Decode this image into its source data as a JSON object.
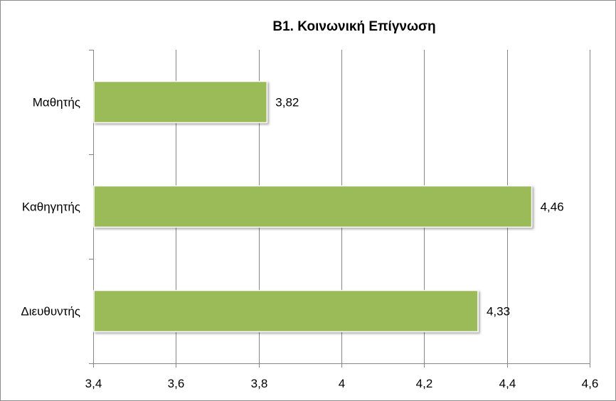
{
  "chart_data": {
    "type": "bar",
    "orientation": "horizontal",
    "title": "B1. Κοινωνική Επίγνωση",
    "categories": [
      "Μαθητής",
      "Καθηγητής",
      "Διευθυντής"
    ],
    "values": [
      3.82,
      4.46,
      4.33
    ],
    "value_labels": [
      "3,82",
      "4,46",
      "4,33"
    ],
    "xlim": [
      3.4,
      4.6
    ],
    "xticks": [
      3.4,
      3.6,
      3.8,
      4.0,
      4.2,
      4.4,
      4.6
    ],
    "xtick_labels": [
      "3,4",
      "3,6",
      "3,8",
      "4",
      "4,2",
      "4,4",
      "4,6"
    ],
    "grid": "vertical",
    "legend": "none",
    "bar_color": "#9bbb59",
    "xlabel": "",
    "ylabel": ""
  }
}
